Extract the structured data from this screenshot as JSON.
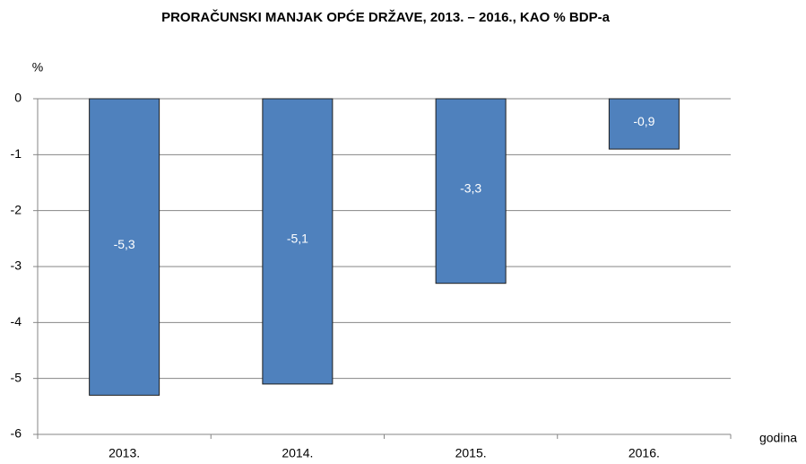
{
  "chart_data": {
    "type": "bar",
    "title": "PRORAČUNSKI MANJAK OPĆE DRŽAVE, 2013. – 2016., KAO % BDP-a",
    "y_axis_label": "%",
    "x_axis_label": "godina",
    "categories": [
      "2013.",
      "2014.",
      "2015.",
      "2016."
    ],
    "values": [
      -5.3,
      -5.1,
      -3.3,
      -0.9
    ],
    "value_labels": [
      "-5,3",
      "-5,1",
      "-3,3",
      "-0,9"
    ],
    "color": "#4f81bd",
    "ylim": [
      -6,
      0
    ],
    "yticks": [
      0,
      -1,
      -2,
      -3,
      -4,
      -5,
      -6
    ],
    "grid": true
  }
}
